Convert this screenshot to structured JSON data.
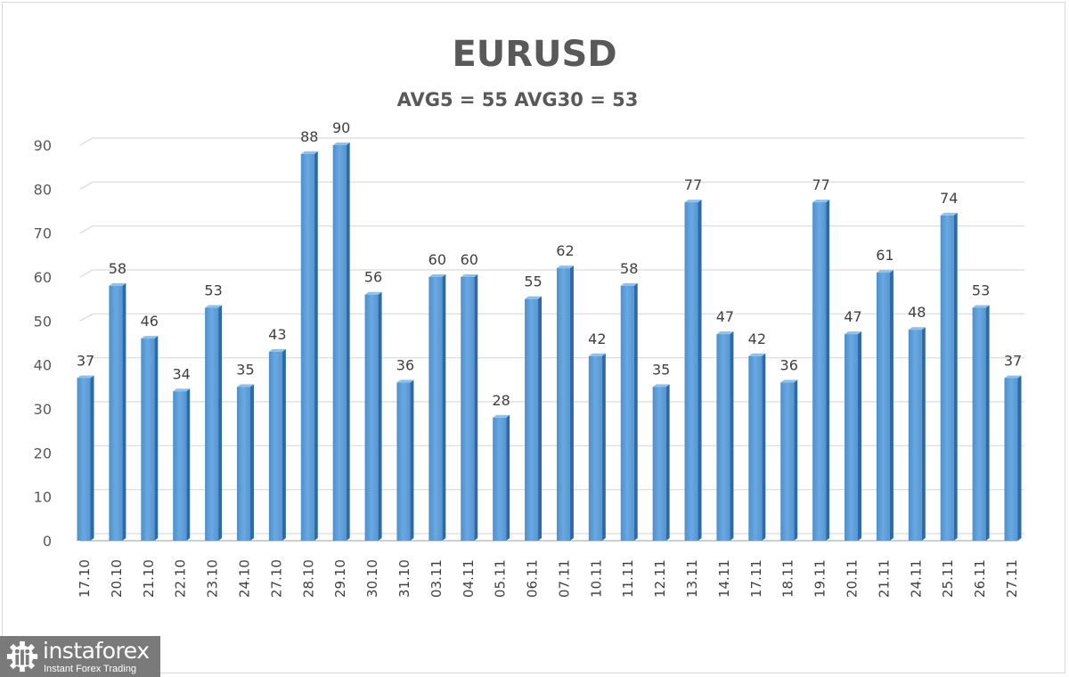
{
  "chart_data": {
    "type": "bar",
    "title": "EURUSD",
    "subtitle": "AVG5 = 55 AVG30 = 53",
    "xlabel": "",
    "ylabel": "",
    "ylim": [
      0,
      90
    ],
    "yticks": [
      0,
      10,
      20,
      30,
      40,
      50,
      60,
      70,
      80,
      90
    ],
    "grid": true,
    "legend": "none",
    "bar_color": "#5b9bd5",
    "categories": [
      "17.10",
      "20.10",
      "21.10",
      "22.10",
      "23.10",
      "24.10",
      "27.10",
      "28.10",
      "29.10",
      "30.10",
      "31.10",
      "03.11",
      "04.11",
      "05.11",
      "06.11",
      "07.11",
      "10.11",
      "11.11",
      "12.11",
      "13.11",
      "14.11",
      "17.11",
      "18.11",
      "19.11",
      "20.11",
      "21.11",
      "24.11",
      "25.11",
      "26.11",
      "27.11"
    ],
    "values": [
      37,
      58,
      46,
      34,
      53,
      35,
      43,
      88,
      90,
      56,
      36,
      60,
      60,
      28,
      55,
      62,
      42,
      58,
      35,
      77,
      47,
      42,
      36,
      77,
      47,
      61,
      48,
      74,
      53,
      37
    ]
  },
  "header": {
    "title": "EURUSD",
    "subtitle": "AVG5 = 55 AVG30 = 53"
  },
  "watermark": {
    "brand": "instaforex",
    "tagline": "Instant Forex Trading"
  }
}
